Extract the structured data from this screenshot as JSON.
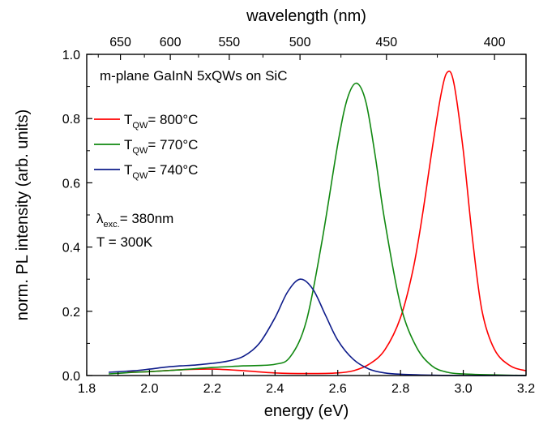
{
  "chart_data": {
    "type": "line",
    "xlabel": "energy (eV)",
    "ylabel": "norm. PL intensity (arb. units)",
    "top_xlabel": "wavelength (nm)",
    "xlim": [
      1.8,
      3.2
    ],
    "ylim": [
      0.0,
      1.0
    ],
    "x_ticks": [
      {
        "value": 1.8,
        "label": "1.8"
      },
      {
        "value": 2.0,
        "label": "2.0"
      },
      {
        "value": 2.2,
        "label": "2.2"
      },
      {
        "value": 2.4,
        "label": "2.4"
      },
      {
        "value": 2.6,
        "label": "2.6"
      },
      {
        "value": 2.8,
        "label": "2.8"
      },
      {
        "value": 3.0,
        "label": "3.0"
      },
      {
        "value": 3.2,
        "label": "3.2"
      }
    ],
    "y_ticks": [
      {
        "value": 0.0,
        "label": "0.0"
      },
      {
        "value": 0.2,
        "label": "0.2"
      },
      {
        "value": 0.4,
        "label": "0.4"
      },
      {
        "value": 0.6,
        "label": "0.6"
      },
      {
        "value": 0.8,
        "label": "0.8"
      },
      {
        "value": 1.0,
        "label": "1.0"
      }
    ],
    "top_ticks": [
      {
        "value": 650,
        "label": "650"
      },
      {
        "value": 600,
        "label": "600"
      },
      {
        "value": 550,
        "label": "550"
      },
      {
        "value": 500,
        "label": "500"
      },
      {
        "value": 450,
        "label": "450"
      },
      {
        "value": 400,
        "label": "400"
      }
    ],
    "annotation_title": "m-plane GaInN 5xQWs on SiC",
    "conditions": {
      "lambda_symbol": "λ",
      "lambda_sub": "exc.",
      "lambda_value": "= 380nm",
      "temperature": "T = 300K"
    },
    "grid": false,
    "legend_position": "upper-left",
    "series": [
      {
        "name": "T",
        "name_sub": "QW",
        "name_suffix": "= 800°C",
        "color": "#ff0000",
        "x": [
          1.93,
          2.0,
          2.1,
          2.2,
          2.3,
          2.4,
          2.5,
          2.6,
          2.65,
          2.7,
          2.75,
          2.8,
          2.84,
          2.87,
          2.9,
          2.93,
          2.95,
          2.97,
          3.0,
          3.03,
          3.06,
          3.1,
          3.15,
          3.2
        ],
        "y": [
          0.01,
          0.012,
          0.018,
          0.02,
          0.015,
          0.008,
          0.006,
          0.008,
          0.015,
          0.035,
          0.08,
          0.18,
          0.33,
          0.5,
          0.7,
          0.88,
          0.945,
          0.91,
          0.7,
          0.42,
          0.2,
          0.08,
          0.03,
          0.015
        ]
      },
      {
        "name": "T",
        "name_sub": "QW",
        "name_suffix": "= 770°C",
        "color": "#118811",
        "x": [
          1.87,
          1.95,
          2.0,
          2.1,
          2.2,
          2.3,
          2.4,
          2.45,
          2.5,
          2.55,
          2.6,
          2.63,
          2.66,
          2.69,
          2.72,
          2.75,
          2.8,
          2.85,
          2.9,
          2.95,
          3.0,
          3.1,
          3.2
        ],
        "y": [
          0.005,
          0.01,
          0.012,
          0.018,
          0.025,
          0.03,
          0.035,
          0.06,
          0.17,
          0.42,
          0.72,
          0.86,
          0.91,
          0.85,
          0.68,
          0.48,
          0.22,
          0.09,
          0.03,
          0.01,
          0.005,
          0.002,
          0.0
        ]
      },
      {
        "name": "T",
        "name_sub": "QW",
        "name_suffix": "= 740°C",
        "color": "#0d1b8a",
        "x": [
          1.87,
          1.95,
          2.0,
          2.05,
          2.1,
          2.15,
          2.2,
          2.25,
          2.3,
          2.35,
          2.4,
          2.44,
          2.48,
          2.52,
          2.56,
          2.6,
          2.65,
          2.7,
          2.75,
          2.8,
          2.9,
          3.0,
          3.1,
          3.2
        ],
        "y": [
          0.01,
          0.015,
          0.02,
          0.026,
          0.03,
          0.033,
          0.038,
          0.045,
          0.06,
          0.1,
          0.18,
          0.26,
          0.3,
          0.27,
          0.19,
          0.11,
          0.05,
          0.02,
          0.008,
          0.004,
          0.001,
          0.0,
          0.0,
          0.0
        ]
      }
    ]
  }
}
